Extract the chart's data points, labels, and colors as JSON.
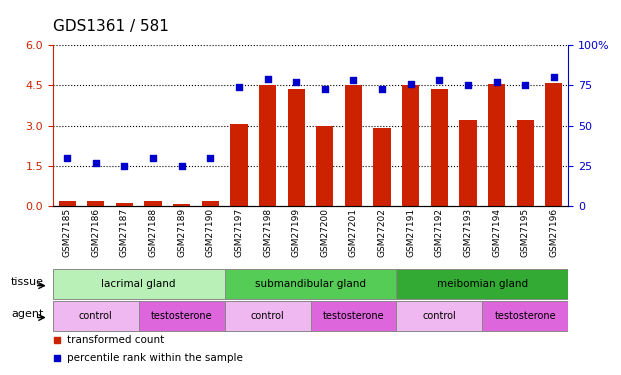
{
  "title": "GDS1361 / 581",
  "samples": [
    "GSM27185",
    "GSM27186",
    "GSM27187",
    "GSM27188",
    "GSM27189",
    "GSM27190",
    "GSM27197",
    "GSM27198",
    "GSM27199",
    "GSM27200",
    "GSM27201",
    "GSM27202",
    "GSM27191",
    "GSM27192",
    "GSM27193",
    "GSM27194",
    "GSM27195",
    "GSM27196"
  ],
  "bar_values": [
    0.2,
    0.2,
    0.12,
    0.2,
    0.1,
    0.2,
    3.05,
    4.5,
    4.35,
    3.0,
    4.5,
    2.9,
    4.5,
    4.35,
    3.2,
    4.55,
    3.2,
    4.6
  ],
  "dot_values_pct": [
    30,
    27,
    25,
    30,
    25,
    30,
    74,
    79,
    77,
    73,
    78,
    73,
    76,
    78,
    75,
    77,
    75,
    80
  ],
  "bar_color": "#cc2200",
  "dot_color": "#0000cc",
  "ylim_left": [
    0,
    6
  ],
  "ylim_right": [
    0,
    100
  ],
  "yticks_left": [
    0,
    1.5,
    3.0,
    4.5,
    6
  ],
  "yticks_right": [
    0,
    25,
    50,
    75,
    100
  ],
  "tissue_groups": [
    {
      "label": "lacrimal gland",
      "start": 0,
      "end": 6,
      "color": "#b8f0b8"
    },
    {
      "label": "submandibular gland",
      "start": 6,
      "end": 12,
      "color": "#55cc55"
    },
    {
      "label": "meibomian gland",
      "start": 12,
      "end": 18,
      "color": "#33aa33"
    }
  ],
  "agent_groups": [
    {
      "label": "control",
      "start": 0,
      "end": 3,
      "color": "#f0b8f0"
    },
    {
      "label": "testosterone",
      "start": 3,
      "end": 6,
      "color": "#dd66dd"
    },
    {
      "label": "control",
      "start": 6,
      "end": 9,
      "color": "#f0b8f0"
    },
    {
      "label": "testosterone",
      "start": 9,
      "end": 12,
      "color": "#dd66dd"
    },
    {
      "label": "control",
      "start": 12,
      "end": 15,
      "color": "#f0b8f0"
    },
    {
      "label": "testosterone",
      "start": 15,
      "end": 18,
      "color": "#dd66dd"
    }
  ],
  "tissue_row_label": "tissue",
  "agent_row_label": "agent",
  "legend_items": [
    {
      "label": "transformed count",
      "color": "#cc2200"
    },
    {
      "label": "percentile rank within the sample",
      "color": "#0000cc"
    }
  ],
  "bar_width": 0.6,
  "axis_label_color_left": "#cc2200",
  "axis_label_color_right": "#0000cc"
}
